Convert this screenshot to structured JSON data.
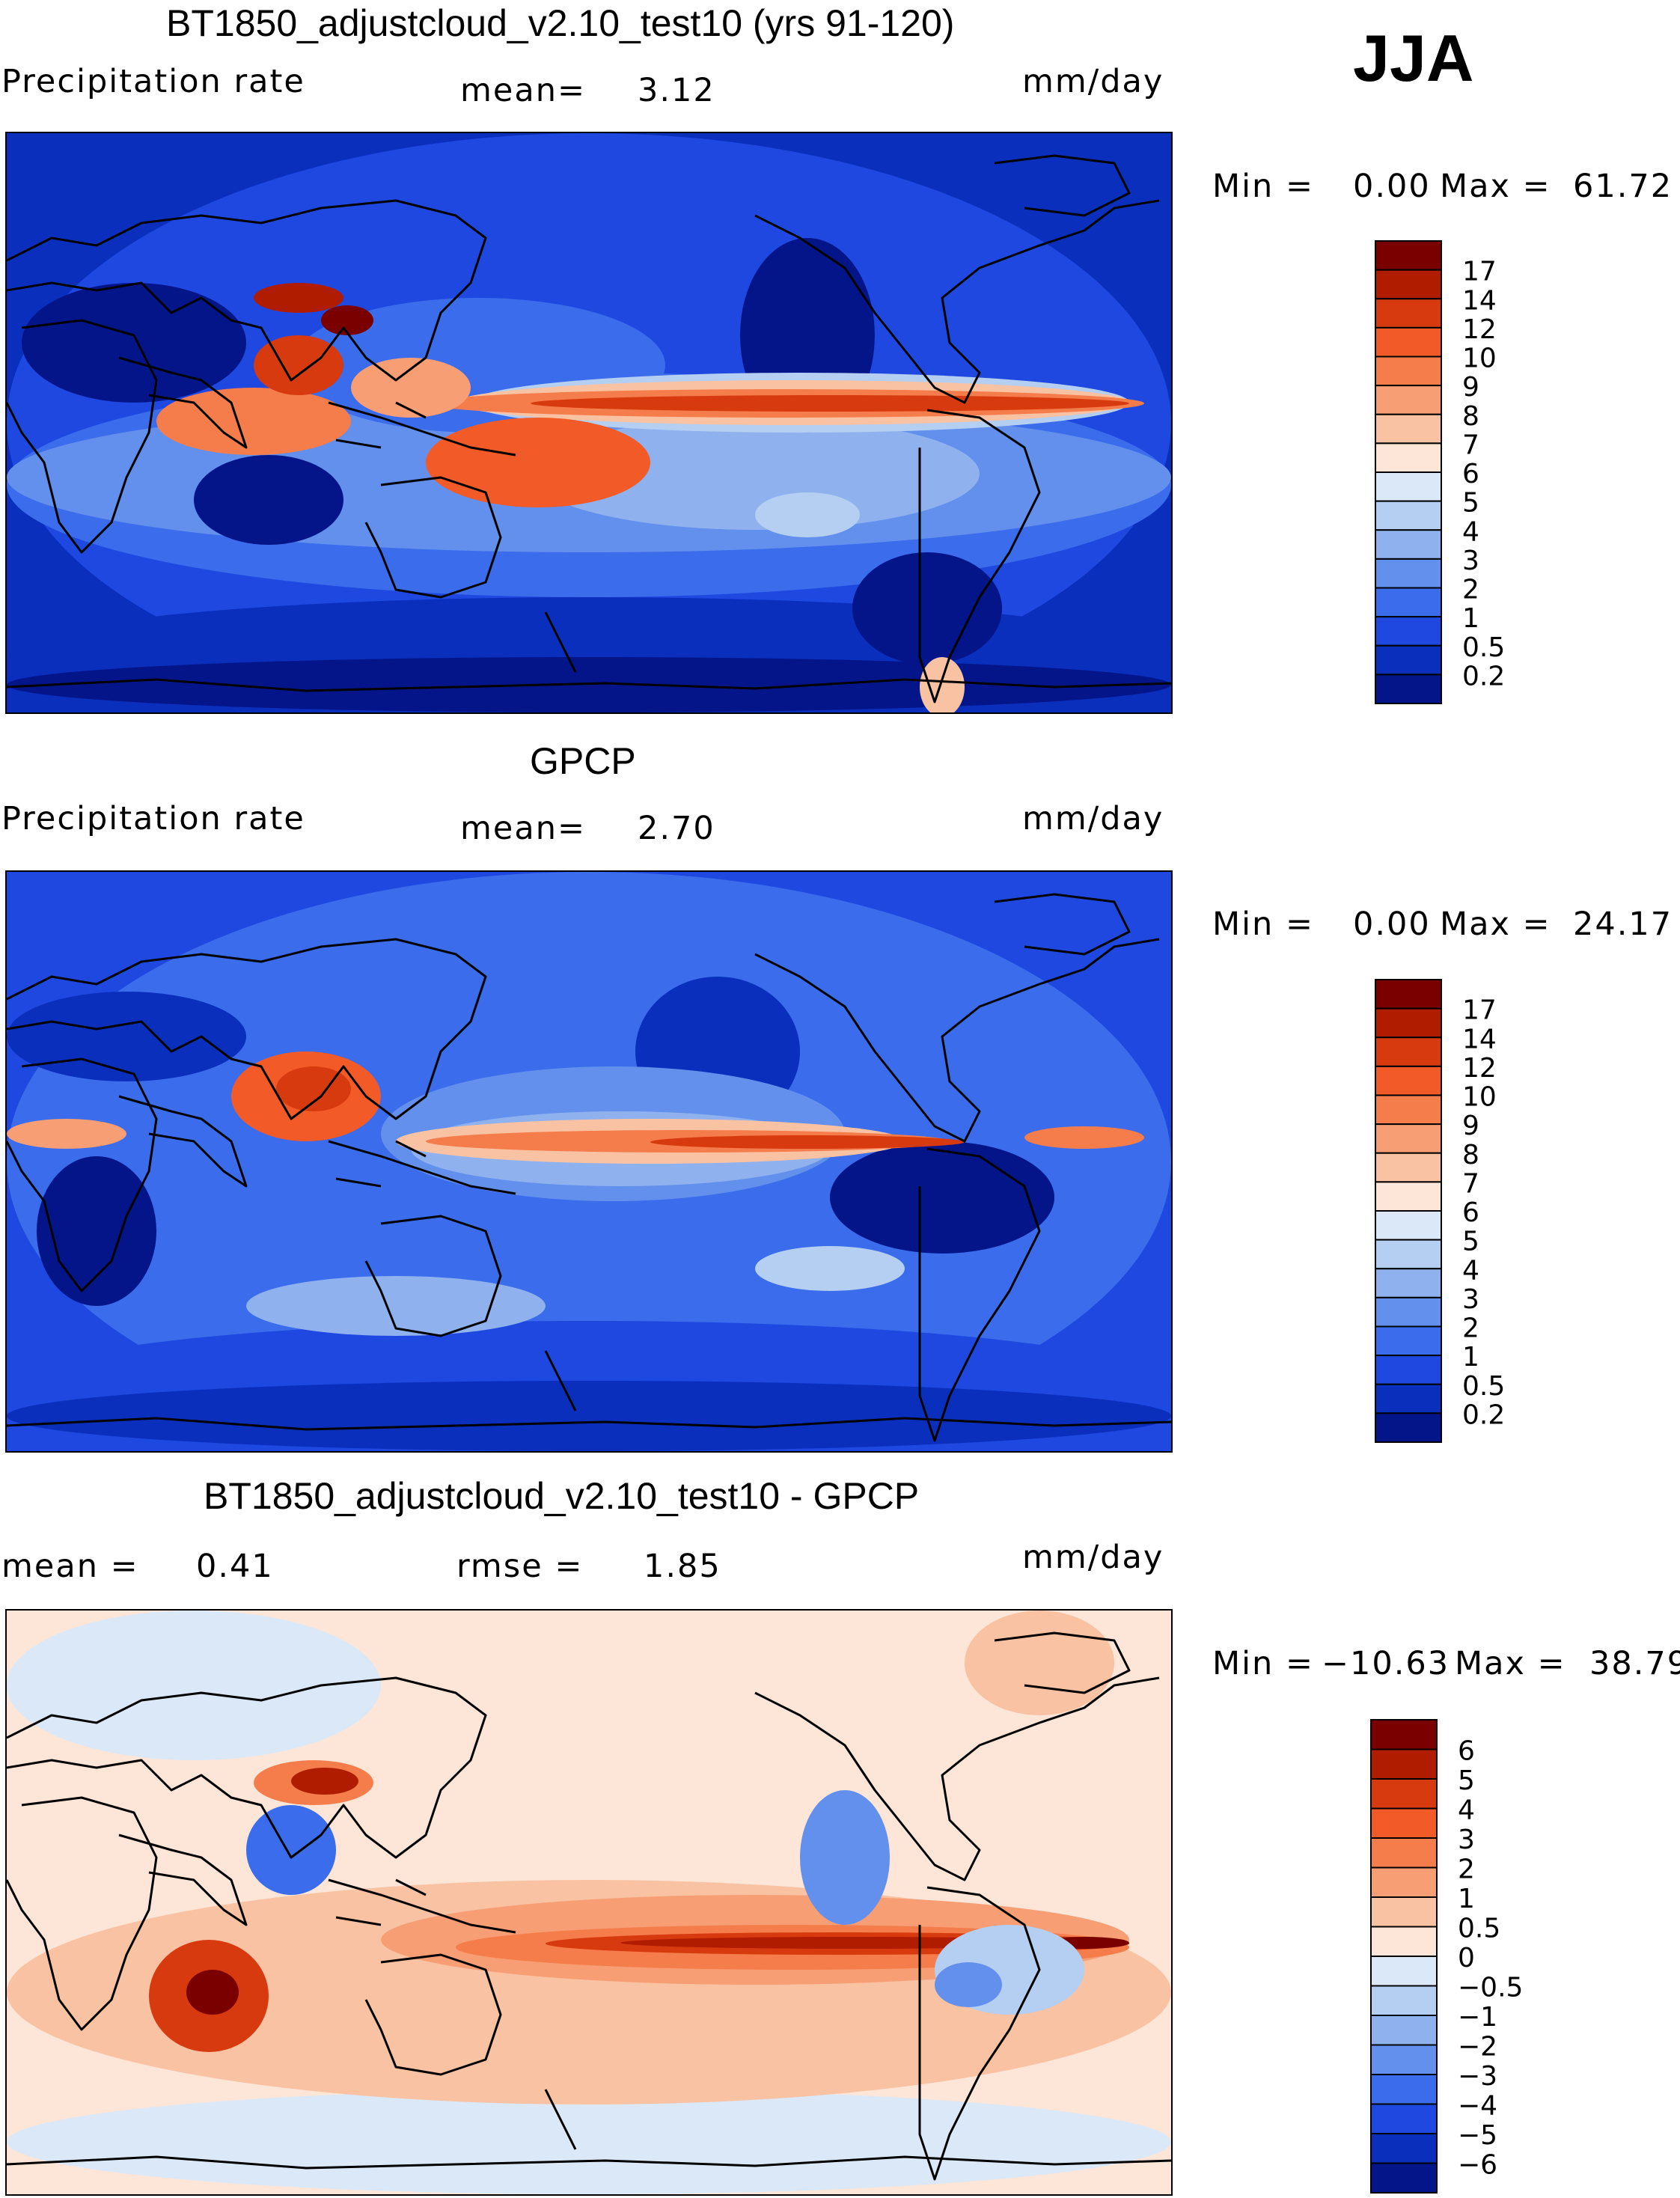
{
  "season": "JJA",
  "panels": [
    {
      "title": "BT1850_adjustcloud_v2.10_test10 (yrs 91-120)",
      "left_label": "Precipitation rate",
      "stat1_label": "mean=",
      "stat1_value": "3.12",
      "stat2_label": "",
      "stat2_value": "",
      "units": "mm/day",
      "min_label": "Min =",
      "min_value": "0.00",
      "max_label": "Max =",
      "max_value": "61.72",
      "levels": [
        "17",
        "14",
        "12",
        "10",
        "9",
        "8",
        "7",
        "6",
        "5",
        "4",
        "3",
        "2",
        "1",
        "0.5",
        "0.2"
      ],
      "colors": [
        "#7a0000",
        "#b01c00",
        "#d83a10",
        "#f25a28",
        "#f57d4b",
        "#f79e75",
        "#f9c2a3",
        "#fde6d8",
        "#dbe8f7",
        "#b5cff2",
        "#8fb2ef",
        "#6390ec",
        "#3a6cec",
        "#1e48e0",
        "#0a2fbd",
        "#04158a"
      ]
    },
    {
      "title": "GPCP",
      "left_label": "Precipitation rate",
      "stat1_label": "mean=",
      "stat1_value": "2.70",
      "stat2_label": "",
      "stat2_value": "",
      "units": "mm/day",
      "min_label": "Min =",
      "min_value": "0.00",
      "max_label": "Max =",
      "max_value": "24.17",
      "levels": [
        "17",
        "14",
        "12",
        "10",
        "9",
        "8",
        "7",
        "6",
        "5",
        "4",
        "3",
        "2",
        "1",
        "0.5",
        "0.2"
      ],
      "colors": [
        "#7a0000",
        "#b01c00",
        "#d83a10",
        "#f25a28",
        "#f57d4b",
        "#f79e75",
        "#f9c2a3",
        "#fde6d8",
        "#dbe8f7",
        "#b5cff2",
        "#8fb2ef",
        "#6390ec",
        "#3a6cec",
        "#1e48e0",
        "#0a2fbd",
        "#04158a"
      ]
    },
    {
      "title": "BT1850_adjustcloud_v2.10_test10 - GPCP",
      "left_label": "",
      "stat1_label": "mean =",
      "stat1_value": "0.41",
      "stat2_label": "rmse =",
      "stat2_value": "1.85",
      "units": "mm/day",
      "min_label": "Min =",
      "min_value": "−10.63",
      "max_label": "Max =",
      "max_value": "38.79",
      "levels": [
        "6",
        "5",
        "4",
        "3",
        "2",
        "1",
        "0.5",
        "0",
        "−0.5",
        "−1",
        "−2",
        "−3",
        "−4",
        "−5",
        "−6"
      ],
      "colors": [
        "#7a0000",
        "#b01c00",
        "#d83a10",
        "#f25a28",
        "#f57d4b",
        "#f79e75",
        "#f9c2a3",
        "#fde6d8",
        "#dbe8f7",
        "#b5cff2",
        "#8fb2ef",
        "#6390ec",
        "#3a6cec",
        "#1e48e0",
        "#0a2fbd",
        "#04158a"
      ]
    }
  ]
}
